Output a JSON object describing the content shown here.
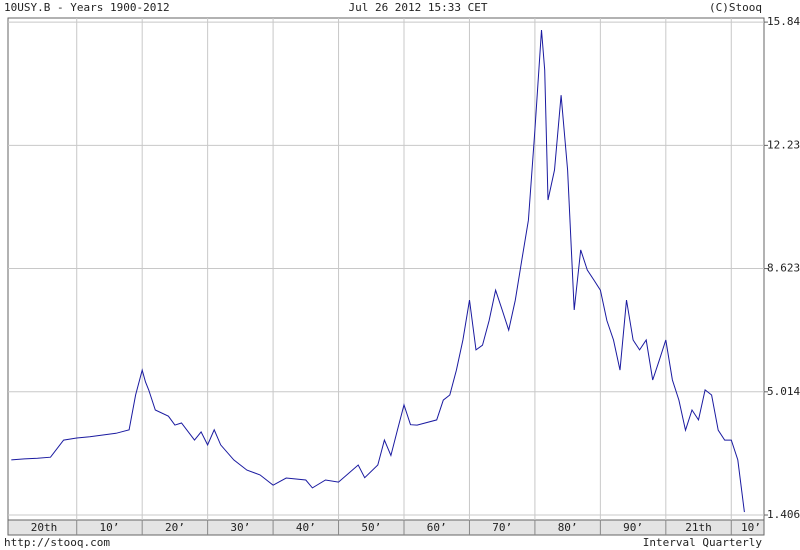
{
  "header": {
    "left": "10USY.B - Years 1900-2012",
    "center": "Jul 26 2012 15:33 CET",
    "right": "(C)Stooq"
  },
  "footer": {
    "left": "http://stooq.com",
    "right": "Interval Quarterly"
  },
  "chart_data": {
    "type": "line",
    "color": "#1a1aa0",
    "grid": true,
    "x": [
      1900,
      1902,
      1904,
      1906,
      1908,
      1910,
      1912,
      1914,
      1916,
      1918,
      1919,
      1920,
      1920.5,
      1921,
      1922,
      1924,
      1925,
      1926,
      1928,
      1929,
      1930,
      1931,
      1932,
      1934,
      1936,
      1938,
      1940,
      1942,
      1945,
      1946,
      1948,
      1950,
      1953,
      1954,
      1956,
      1957,
      1958,
      1959,
      1960,
      1961,
      1962,
      1965,
      1966,
      1967,
      1968,
      1969,
      1970,
      1971,
      1972,
      1973,
      1974,
      1975,
      1976,
      1977,
      1978,
      1979,
      1980,
      1981,
      1981.5,
      1982,
      1983,
      1984,
      1985,
      1986,
      1987,
      1988,
      1989,
      1990,
      1991,
      1992,
      1993,
      1994,
      1995,
      1996,
      1997,
      1998,
      1999,
      2000,
      2001,
      2002,
      2003,
      2004,
      2005,
      2006,
      2007,
      2008,
      2009,
      2010,
      2011,
      2012
    ],
    "values": [
      3.02,
      3.05,
      3.07,
      3.1,
      3.6,
      3.66,
      3.7,
      3.75,
      3.8,
      3.9,
      4.92,
      5.65,
      5.3,
      5.07,
      4.48,
      4.3,
      4.04,
      4.1,
      3.6,
      3.84,
      3.46,
      3.9,
      3.46,
      3.02,
      2.72,
      2.58,
      2.28,
      2.49,
      2.43,
      2.2,
      2.43,
      2.37,
      2.87,
      2.5,
      2.87,
      3.6,
      3.15,
      3.9,
      4.63,
      4.05,
      4.04,
      4.19,
      4.77,
      4.92,
      5.65,
      6.53,
      7.7,
      6.24,
      6.38,
      7.1,
      7.99,
      7.41,
      6.82,
      7.7,
      8.87,
      10.04,
      12.68,
      15.61,
      14.44,
      10.63,
      11.51,
      13.7,
      11.51,
      7.41,
      9.17,
      8.58,
      8.29,
      7.99,
      7.1,
      6.53,
      5.65,
      7.7,
      6.53,
      6.24,
      6.53,
      5.36,
      5.94,
      6.53,
      5.36,
      4.77,
      3.89,
      4.48,
      4.19,
      5.07,
      4.92,
      3.89,
      3.6,
      3.6,
      3.02,
      1.49
    ],
    "xlim": [
      1899.5,
      2015
    ],
    "ylim": [
      1.26,
      15.96
    ],
    "yticks": [
      1.406,
      5.014,
      8.623,
      12.23,
      15.84
    ],
    "xgrid": [
      1910,
      1920,
      1930,
      1940,
      1950,
      1960,
      1970,
      1980,
      1990,
      2000,
      2010
    ],
    "xticks": [
      {
        "value": 1905,
        "label": "20th"
      },
      {
        "value": 1915,
        "label": "10’"
      },
      {
        "value": 1925,
        "label": "20’"
      },
      {
        "value": 1935,
        "label": "30’"
      },
      {
        "value": 1945,
        "label": "40’"
      },
      {
        "value": 1955,
        "label": "50’"
      },
      {
        "value": 1965,
        "label": "60’"
      },
      {
        "value": 1975,
        "label": "70’"
      },
      {
        "value": 1985,
        "label": "80’"
      },
      {
        "value": 1995,
        "label": "90’"
      },
      {
        "value": 2005,
        "label": "21th"
      },
      {
        "value": 2013,
        "label": "10’"
      }
    ]
  }
}
